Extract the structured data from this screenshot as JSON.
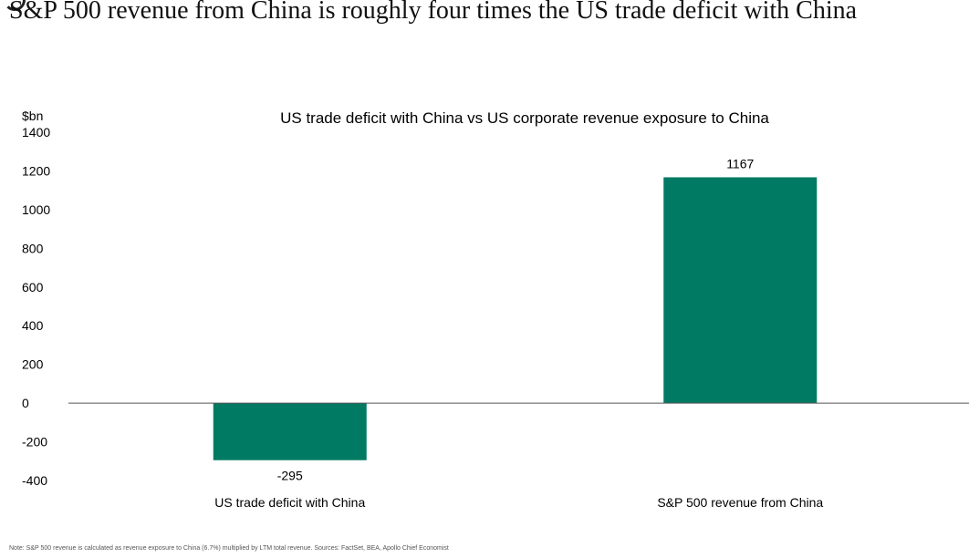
{
  "header": {
    "title": "S&P 500 revenue from China is roughly four times the US trade deficit with China"
  },
  "chart_data": {
    "type": "bar",
    "title": "US trade deficit with China vs US corporate revenue exposure to China",
    "ylabel": "$bn",
    "xlabel": "",
    "categories": [
      "US trade deficit with China",
      "S&P 500 revenue from China"
    ],
    "values": [
      -295,
      1167
    ],
    "data_labels": [
      "-295",
      "1167"
    ],
    "ylim": [
      -400,
      1400
    ],
    "yticks": [
      1400,
      1200,
      1000,
      800,
      600,
      400,
      200,
      0,
      -200,
      -400
    ],
    "ytick_labels": [
      "1400",
      "1200",
      "1000",
      "800",
      "600",
      "400",
      "200",
      "0",
      "-200",
      "-400"
    ],
    "bar_color": "#007a63",
    "grid": false,
    "legend": "none"
  },
  "footer": {
    "note": "Note: S&P 500 revenue is calculated as revenue exposure to China (6.7%) multiplied by LTM total revenue. Sources: FactSet, BEA, Apollo Chief Economist"
  }
}
